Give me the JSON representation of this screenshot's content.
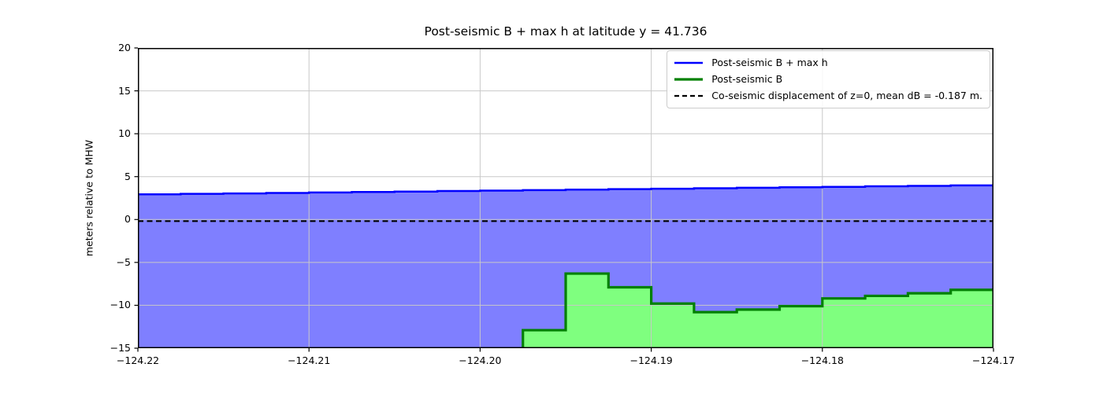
{
  "figure": {
    "background": "#ffffff",
    "grid_color": "#c8c8c8",
    "spine_color": "#000000"
  },
  "chart_data": {
    "type": "area",
    "title": "Post-seismic B + max h at latitude y = 41.736",
    "xlabel": "",
    "ylabel": "meters relative to MHW",
    "xlim": [
      -124.22,
      -124.17
    ],
    "ylim": [
      -15,
      20
    ],
    "grid": true,
    "legend_position": "upper right",
    "xticks": {
      "values": [
        -124.22,
        -124.21,
        -124.2,
        -124.19,
        -124.18,
        -124.17
      ],
      "labels": [
        "−124.22",
        "−124.21",
        "−124.20",
        "−124.19",
        "−124.18",
        "−124.17"
      ]
    },
    "yticks": {
      "values": [
        20,
        15,
        10,
        5,
        0,
        -5,
        -10,
        -15
      ],
      "labels": [
        "20",
        "15",
        "10",
        "5",
        "0",
        "−5",
        "−10",
        "−15"
      ]
    },
    "x_start": -124.22,
    "dx": 0.0025,
    "series": [
      {
        "name": "Post-seismic B + max h",
        "type": "step",
        "line_color": "#0000ff",
        "line_width": 2.5,
        "fill": "between-curves",
        "fill_color": "#0000ff",
        "fill_opacity": 0.5,
        "values": [
          2.93,
          2.99,
          3.04,
          3.1,
          3.15,
          3.21,
          3.26,
          3.32,
          3.37,
          3.43,
          3.48,
          3.54,
          3.59,
          3.65,
          3.7,
          3.76,
          3.81,
          3.87,
          3.92,
          3.98
        ]
      },
      {
        "name": "Post-seismic B",
        "type": "step",
        "line_color": "#008000",
        "line_width": 3.2,
        "fill": "to-bottom",
        "fill_color": "#00ff00",
        "fill_opacity": 0.5,
        "values": [
          null,
          null,
          null,
          null,
          null,
          null,
          null,
          null,
          null,
          -12.9,
          -6.3,
          -7.9,
          -9.8,
          -10.8,
          -10.5,
          -10.1,
          -9.2,
          -8.9,
          -8.6,
          -8.2
        ]
      },
      {
        "name": "Co-seismic displacement of z=0",
        "type": "hline",
        "y": -0.187,
        "line_color": "#000000",
        "line_width": 2.2,
        "dash": [
          7,
          4.5
        ]
      }
    ],
    "legend": {
      "entries": [
        {
          "label": "Post-seismic B + max h",
          "color": "#0000ff",
          "width": 2.5,
          "dash": null
        },
        {
          "label": "Post-seismic B",
          "color": "#008000",
          "width": 3.2,
          "dash": null
        },
        {
          "label": "Co-seismic displacement of z=0, mean dB = -0.187 m.",
          "color": "#000000",
          "width": 2.2,
          "dash": [
            6,
            4
          ]
        }
      ]
    }
  }
}
